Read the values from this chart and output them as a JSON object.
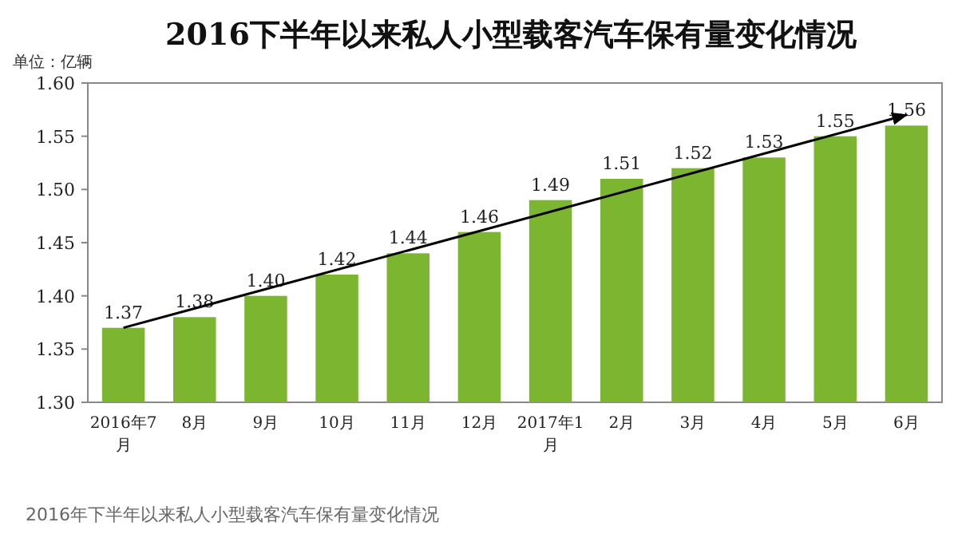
{
  "chart_data": {
    "type": "bar",
    "title": "2016下半年以来私人小型载客汽车保有量变化情况",
    "ylabel": "单位：亿辆",
    "categories": [
      "2016年7月",
      "8月",
      "9月",
      "10月",
      "11月",
      "12月",
      "2017年1月",
      "2月",
      "3月",
      "4月",
      "5月",
      "6月"
    ],
    "values": [
      1.37,
      1.38,
      1.4,
      1.42,
      1.44,
      1.46,
      1.49,
      1.51,
      1.52,
      1.53,
      1.55,
      1.56
    ],
    "color": "#7cb530",
    "value_labels": [
      "1.37",
      "1.38",
      "1.40",
      "1.42",
      "1.44",
      "1.46",
      "1.49",
      "1.51",
      "1.52",
      "1.53",
      "1.55",
      "1.56"
    ],
    "series": [
      {
        "type": "line",
        "color": "#000000",
        "x": [
          "2016年7月",
          "6月"
        ],
        "values": [
          1.37,
          1.57
        ]
      }
    ],
    "ylim": [
      1.3,
      1.6
    ],
    "yticks": [
      {
        "value": 1.3,
        "label": "1.30"
      },
      {
        "value": 1.35,
        "label": "1.35"
      },
      {
        "value": 1.4,
        "label": "1.40"
      },
      {
        "value": 1.45,
        "label": "1.45"
      },
      {
        "value": 1.5,
        "label": "1.50"
      },
      {
        "value": 1.55,
        "label": "1.55"
      },
      {
        "value": 1.6,
        "label": "1.60"
      }
    ],
    "annotations": [
      "2016年下半年以来私人小型载客汽车保有量变化情况"
    ]
  }
}
